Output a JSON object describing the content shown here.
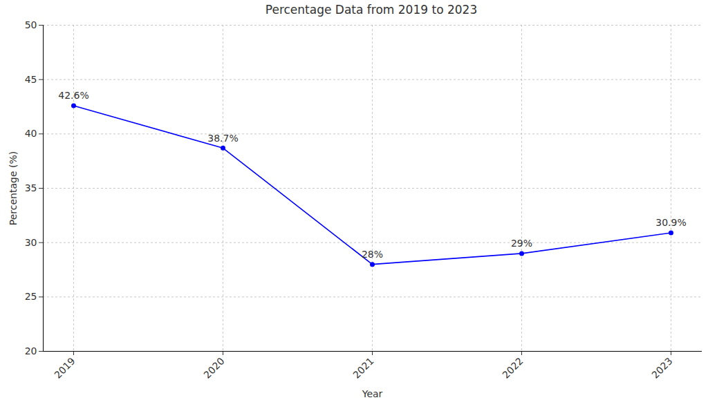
{
  "chart_data": {
    "type": "line",
    "title": "Percentage Data from 2019 to 2023",
    "x_label": "Year",
    "y_label": "Percentage (%)",
    "categories": [
      "2019",
      "2020",
      "2021",
      "2022",
      "2023"
    ],
    "values": [
      42.6,
      38.7,
      28,
      29,
      30.9
    ],
    "value_labels": [
      "42.6%",
      "38.7%",
      "28%",
      "29%",
      "30.9%"
    ],
    "color": "#0000ff",
    "marker": "o",
    "ylim": [
      20,
      50
    ],
    "yticks": [
      20,
      25,
      30,
      35,
      40,
      45,
      50
    ],
    "grid": true,
    "data_labels": true
  }
}
